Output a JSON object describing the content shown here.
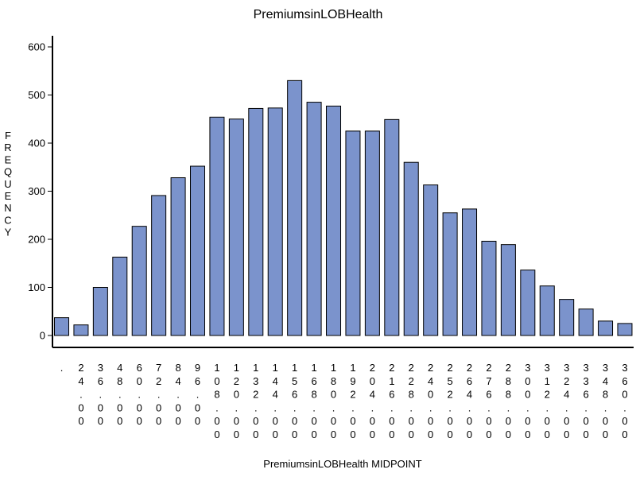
{
  "chart_data": {
    "type": "bar",
    "title": "PremiumsinLOBHealth",
    "xlabel": "PremiumsinLOBHealth MIDPOINT",
    "ylabel": "FREQUENCY",
    "ylim": [
      0,
      620
    ],
    "yticks": [
      0,
      100,
      200,
      300,
      400,
      500,
      600
    ],
    "grid": false,
    "bar_color": "#7b93cc",
    "categories": [
      ".",
      "24.00",
      "36.00",
      "48.00",
      "60.00",
      "72.00",
      "84.00",
      "96.00",
      "108.00",
      "120.00",
      "132.00",
      "144.00",
      "156.00",
      "168.00",
      "180.00",
      "192.00",
      "204.00",
      "216.00",
      "228.00",
      "240.00",
      "252.00",
      "264.00",
      "276.00",
      "288.00",
      "300.00",
      "312.00",
      "324.00",
      "336.00",
      "348.00",
      "360.00"
    ],
    "values": [
      37,
      22,
      100,
      163,
      227,
      291,
      328,
      352,
      454,
      450,
      472,
      473,
      530,
      485,
      477,
      425,
      425,
      449,
      360,
      313,
      255,
      263,
      196,
      189,
      136,
      103,
      75,
      55,
      30,
      25
    ]
  }
}
